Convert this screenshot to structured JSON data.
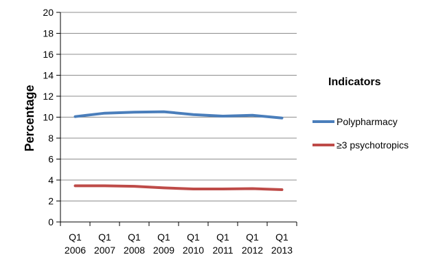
{
  "chart_data": {
    "type": "line",
    "ylabel": "Percentage",
    "ylim": [
      0,
      20
    ],
    "yticks": [
      "0",
      "2",
      "4",
      "6",
      "8",
      "10",
      "12",
      "14",
      "16",
      "18",
      "20"
    ],
    "categories": [
      [
        "Q1",
        "2006"
      ],
      [
        "Q1",
        "2007"
      ],
      [
        "Q1",
        "2008"
      ],
      [
        "Q1",
        "2009"
      ],
      [
        "Q1",
        "2010"
      ],
      [
        "Q1",
        "2011"
      ],
      [
        "Q1",
        "2012"
      ],
      [
        "Q1",
        "2013"
      ]
    ],
    "grid": true,
    "legend": {
      "title": "Indicators",
      "position": "right"
    },
    "series": [
      {
        "name": "Polypharmacy",
        "color": "#4a7ebb",
        "values": [
          10.05,
          10.38,
          10.48,
          10.52,
          10.25,
          10.1,
          10.18,
          9.92
        ]
      },
      {
        "name": "≥3 psychotropics",
        "color": "#be4b48",
        "values": [
          3.45,
          3.45,
          3.4,
          3.25,
          3.15,
          3.15,
          3.18,
          3.08
        ]
      }
    ]
  }
}
